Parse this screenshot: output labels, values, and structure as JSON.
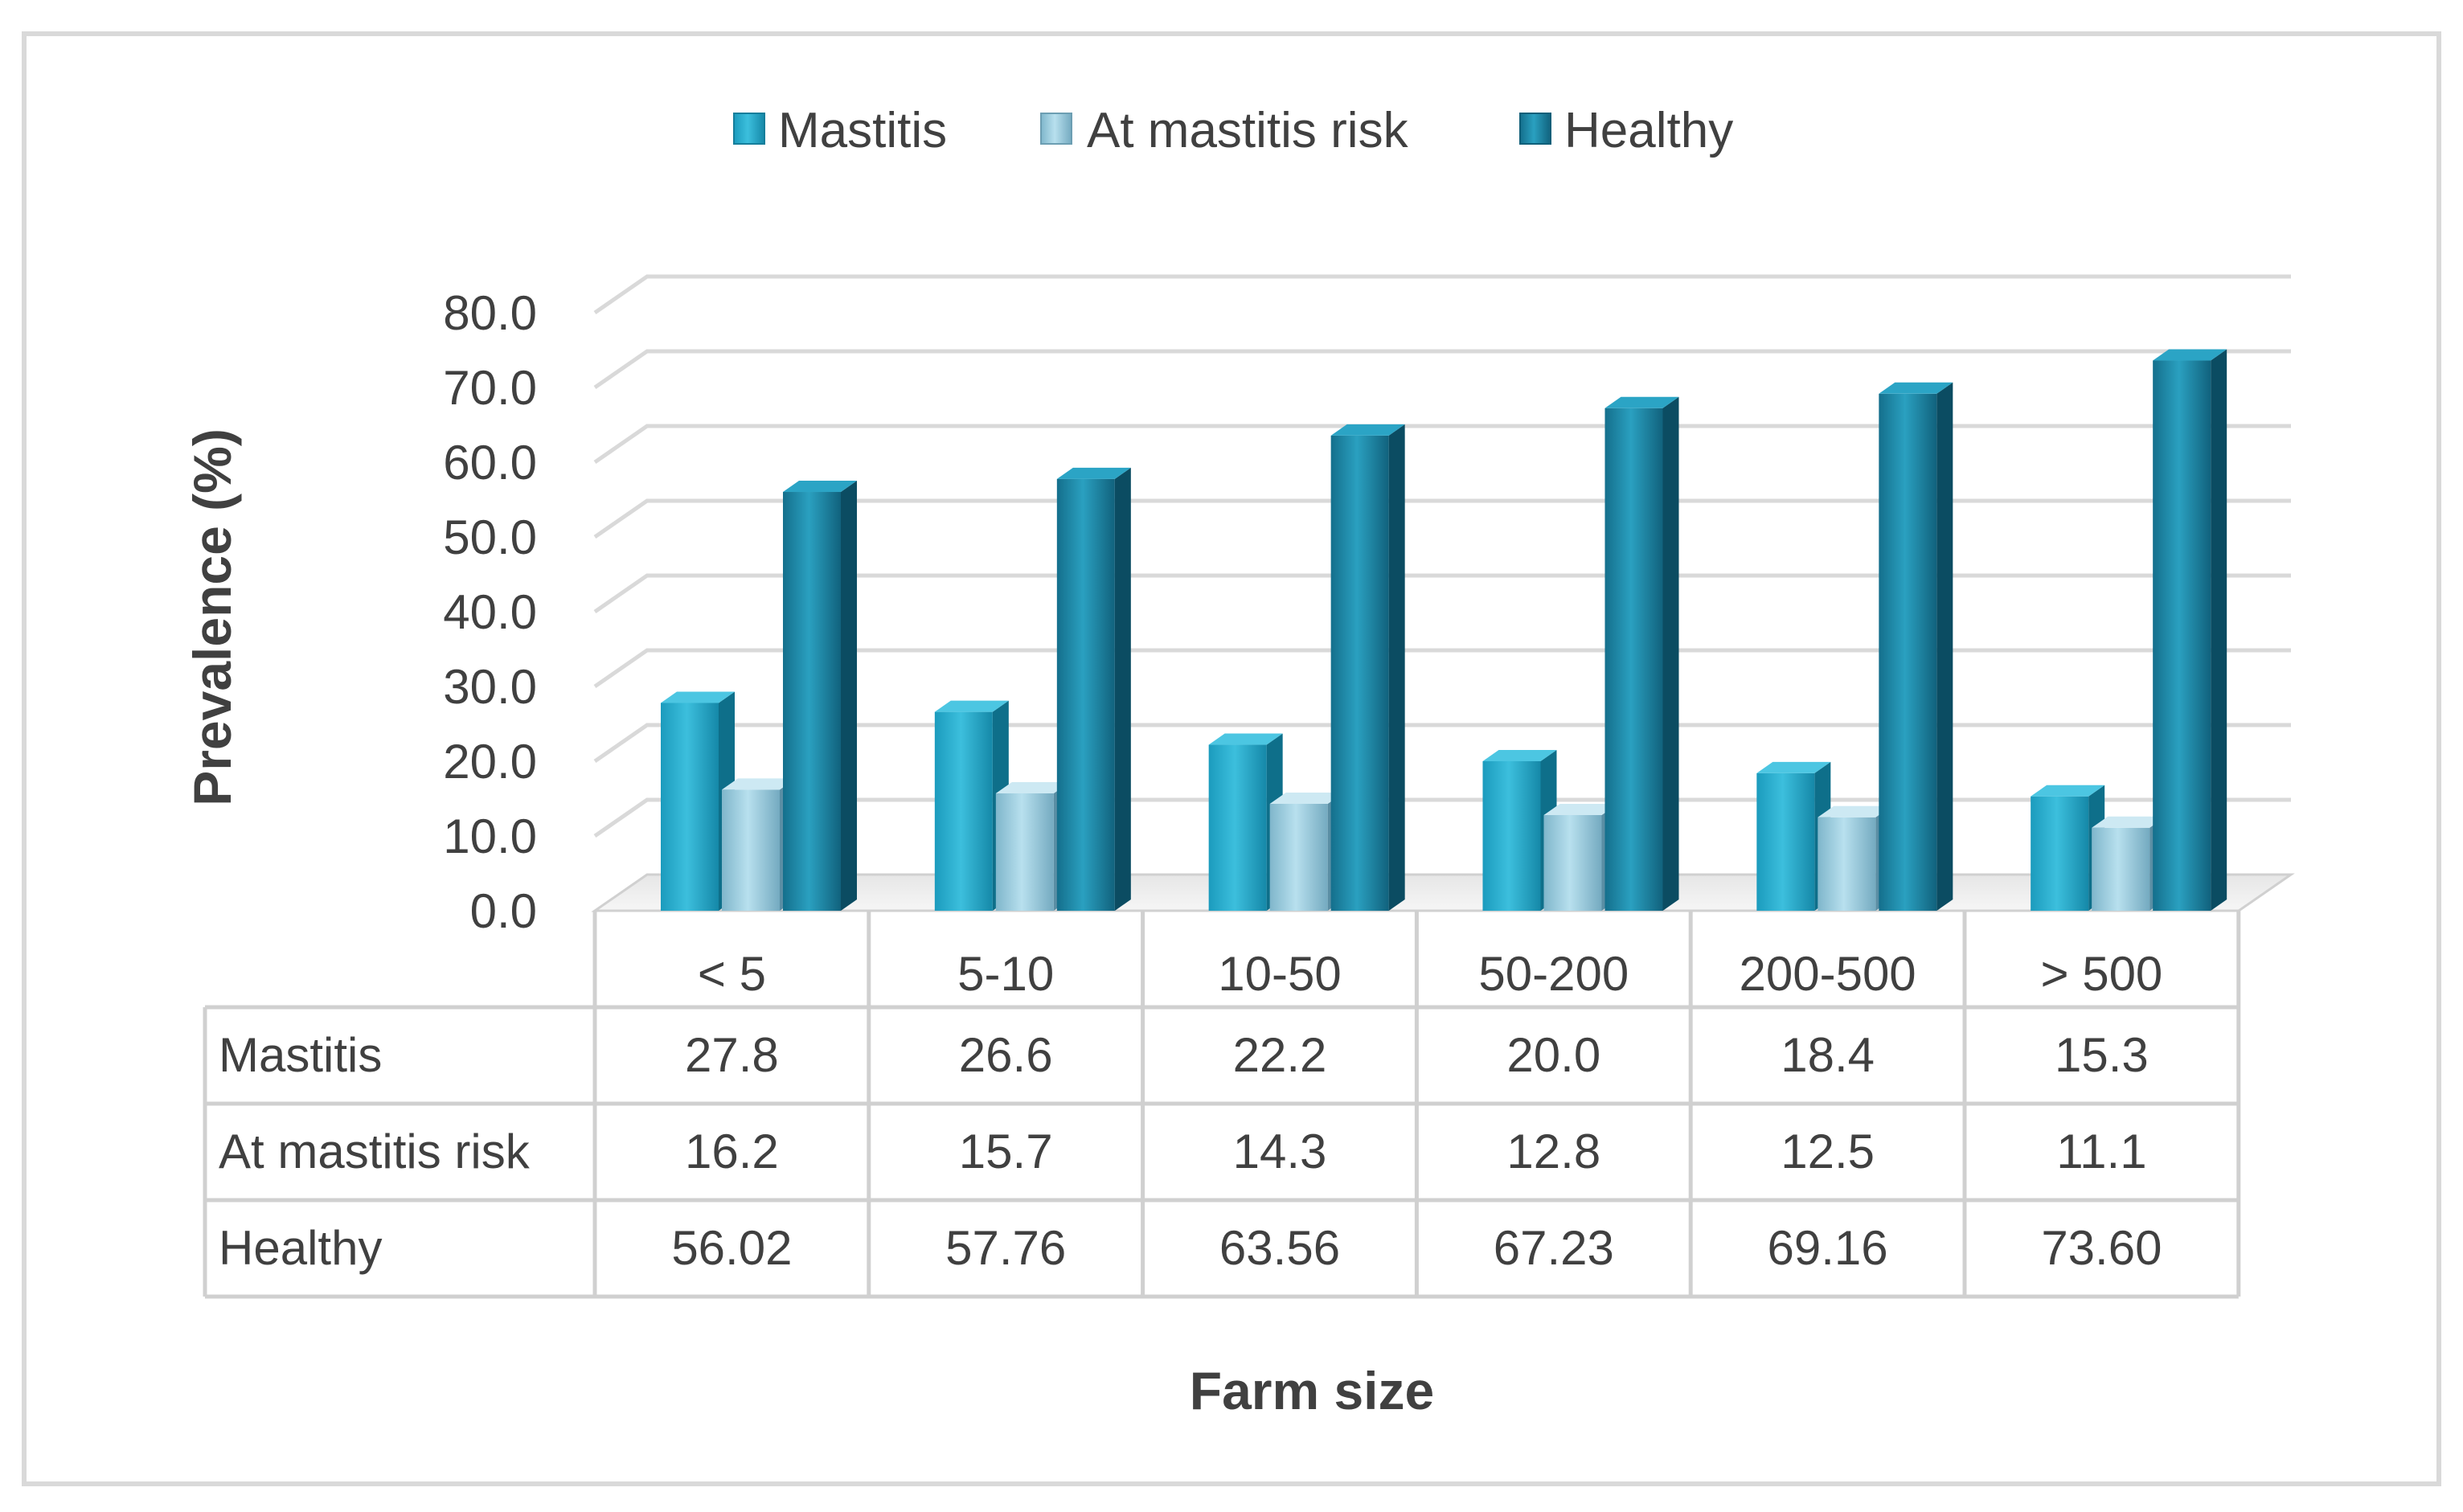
{
  "chart_data": {
    "type": "bar",
    "title": "",
    "xlabel": "Farm size",
    "ylabel": "Prevalence (%)",
    "ylim": [
      0,
      80
    ],
    "ytick_labels": [
      "0.0",
      "10.0",
      "20.0",
      "30.0",
      "40.0",
      "50.0",
      "60.0",
      "70.0",
      "80.0"
    ],
    "grid": true,
    "legend_position": "top-center",
    "categories": [
      "< 5",
      "5-10",
      "10-50",
      "50-200",
      "200-500",
      "> 500"
    ],
    "series": [
      {
        "name": "Mastitis",
        "color": "#1aa3c5",
        "values": [
          27.8,
          26.6,
          22.2,
          20.0,
          18.4,
          15.3
        ],
        "value_labels": [
          "27.8",
          "26.6",
          "22.2",
          "20.0",
          "18.4",
          "15.3"
        ]
      },
      {
        "name": "At mastitis risk",
        "color": "#8fc6da",
        "values": [
          16.2,
          15.7,
          14.3,
          12.8,
          12.5,
          11.1
        ],
        "value_labels": [
          "16.2",
          "15.7",
          "14.3",
          "12.8",
          "12.5",
          "11.1"
        ]
      },
      {
        "name": "Healthy",
        "color": "#1784a3",
        "values": [
          56.02,
          57.76,
          63.56,
          67.23,
          69.16,
          73.6
        ],
        "value_labels": [
          "56.02",
          "57.76",
          "63.56",
          "67.23",
          "69.16",
          "73.60"
        ]
      }
    ]
  }
}
